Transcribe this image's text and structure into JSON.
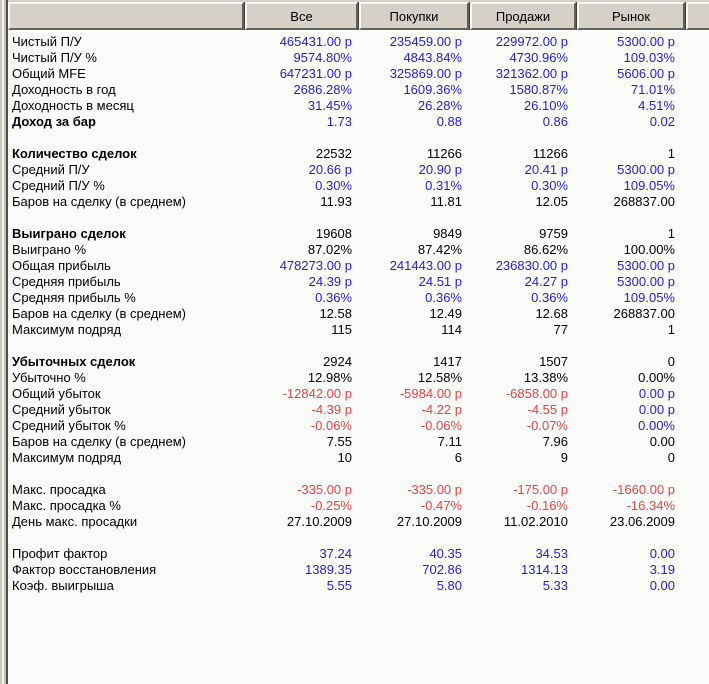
{
  "colors": {
    "blue": "#2222cc",
    "red": "#e24444",
    "black": "#000000",
    "header_bg": "#d5d1c9",
    "body_bg": "#fbfbf9"
  },
  "table": {
    "header": {
      "columns": [
        "Все",
        "Покупки",
        "Продажи",
        "Рынок"
      ]
    },
    "column_keys": [
      "all",
      "buys",
      "sells",
      "market"
    ],
    "rows": [
      {
        "label": "Чистый П/У",
        "values": [
          "465431.00 р",
          "235459.00 р",
          "229972.00 р",
          "5300.00 р"
        ],
        "colors": [
          "blue",
          "blue",
          "blue",
          "blue"
        ]
      },
      {
        "label": "Чистый П/У %",
        "values": [
          "9574.80%",
          "4843.84%",
          "4730.96%",
          "109.03%"
        ],
        "colors": [
          "blue",
          "blue",
          "blue",
          "blue"
        ]
      },
      {
        "label": "Общий MFE",
        "values": [
          "647231.00 р",
          "325869.00 р",
          "321362.00 р",
          "5606.00 р"
        ],
        "colors": [
          "blue",
          "blue",
          "blue",
          "blue"
        ]
      },
      {
        "label": "Доходность в год",
        "values": [
          "2686.28%",
          "1609.36%",
          "1580.87%",
          "71.01%"
        ],
        "colors": [
          "blue",
          "blue",
          "blue",
          "blue"
        ]
      },
      {
        "label": "Доходность в месяц",
        "values": [
          "31.45%",
          "26.28%",
          "26.10%",
          "4.51%"
        ],
        "colors": [
          "blue",
          "blue",
          "blue",
          "blue"
        ]
      },
      {
        "label": "Доход за бар",
        "bold": true,
        "values": [
          "1.73",
          "0.88",
          "0.86",
          "0.02"
        ],
        "colors": [
          "blue",
          "blue",
          "blue",
          "blue"
        ]
      },
      {
        "blank": true
      },
      {
        "label": "Количество сделок",
        "bold": true,
        "values": [
          "22532",
          "11266",
          "11266",
          "1"
        ],
        "colors": [
          "black",
          "black",
          "black",
          "black"
        ]
      },
      {
        "label": "Средний П/У",
        "values": [
          "20.66 р",
          "20.90 р",
          "20.41 р",
          "5300.00 р"
        ],
        "colors": [
          "blue",
          "blue",
          "blue",
          "blue"
        ]
      },
      {
        "label": "Средний П/У %",
        "values": [
          "0.30%",
          "0.31%",
          "0.30%",
          "109.05%"
        ],
        "colors": [
          "blue",
          "blue",
          "blue",
          "blue"
        ]
      },
      {
        "label": "Баров на сделку (в среднем)",
        "values": [
          "11.93",
          "11.81",
          "12.05",
          "268837.00"
        ],
        "colors": [
          "black",
          "black",
          "black",
          "black"
        ]
      },
      {
        "blank": true
      },
      {
        "label": "Выиграно сделок",
        "bold": true,
        "values": [
          "19608",
          "9849",
          "9759",
          "1"
        ],
        "colors": [
          "black",
          "black",
          "black",
          "black"
        ]
      },
      {
        "label": "Выиграно %",
        "values": [
          "87.02%",
          "87.42%",
          "86.62%",
          "100.00%"
        ],
        "colors": [
          "black",
          "black",
          "black",
          "black"
        ]
      },
      {
        "label": "Общая прибыль",
        "values": [
          "478273.00 р",
          "241443.00 р",
          "236830.00 р",
          "5300.00 р"
        ],
        "colors": [
          "blue",
          "blue",
          "blue",
          "blue"
        ]
      },
      {
        "label": "Средняя прибыль",
        "values": [
          "24.39 р",
          "24.51 р",
          "24.27 р",
          "5300.00 р"
        ],
        "colors": [
          "blue",
          "blue",
          "blue",
          "blue"
        ]
      },
      {
        "label": "Средняя прибыль %",
        "values": [
          "0.36%",
          "0.36%",
          "0.36%",
          "109.05%"
        ],
        "colors": [
          "blue",
          "blue",
          "blue",
          "blue"
        ]
      },
      {
        "label": "Баров на сделку (в среднем)",
        "values": [
          "12.58",
          "12.49",
          "12.68",
          "268837.00"
        ],
        "colors": [
          "black",
          "black",
          "black",
          "black"
        ]
      },
      {
        "label": "Максимум подряд",
        "values": [
          "115",
          "114",
          "77",
          "1"
        ],
        "colors": [
          "black",
          "black",
          "black",
          "black"
        ]
      },
      {
        "blank": true
      },
      {
        "label": "Убыточных сделок",
        "bold": true,
        "values": [
          "2924",
          "1417",
          "1507",
          "0"
        ],
        "colors": [
          "black",
          "black",
          "black",
          "black"
        ]
      },
      {
        "label": "Убыточно %",
        "values": [
          "12.98%",
          "12.58%",
          "13.38%",
          "0.00%"
        ],
        "colors": [
          "black",
          "black",
          "black",
          "black"
        ]
      },
      {
        "label": "Общий убыток",
        "values": [
          "-12842.00 р",
          "-5984.00 р",
          "-6858.00 р",
          "0.00 р"
        ],
        "colors": [
          "red",
          "red",
          "red",
          "blue"
        ]
      },
      {
        "label": "Средний убыток",
        "values": [
          "-4.39 р",
          "-4.22 р",
          "-4.55 р",
          "0.00 р"
        ],
        "colors": [
          "red",
          "red",
          "red",
          "blue"
        ]
      },
      {
        "label": "Средний убыток %",
        "values": [
          "-0.06%",
          "-0.06%",
          "-0.07%",
          "0.00%"
        ],
        "colors": [
          "red",
          "red",
          "red",
          "blue"
        ]
      },
      {
        "label": "Баров на сделку (в среднем)",
        "values": [
          "7.55",
          "7.11",
          "7.96",
          "0.00"
        ],
        "colors": [
          "black",
          "black",
          "black",
          "black"
        ]
      },
      {
        "label": "Максимум подряд",
        "values": [
          "10",
          "6",
          "9",
          "0"
        ],
        "colors": [
          "black",
          "black",
          "black",
          "black"
        ]
      },
      {
        "blank": true
      },
      {
        "label": "Макс. просадка",
        "values": [
          "-335.00 р",
          "-335.00 р",
          "-175.00 р",
          "-1660.00 р"
        ],
        "colors": [
          "red",
          "red",
          "red",
          "red"
        ]
      },
      {
        "label": "Макс. просадка %",
        "values": [
          "-0.25%",
          "-0.47%",
          "-0.16%",
          "-16.34%"
        ],
        "colors": [
          "red",
          "red",
          "red",
          "red"
        ]
      },
      {
        "label": "День макс. просадки",
        "values": [
          "27.10.2009",
          "27.10.2009",
          "11.02.2010",
          "23.06.2009"
        ],
        "colors": [
          "black",
          "black",
          "black",
          "black"
        ]
      },
      {
        "blank": true
      },
      {
        "label": "Профит фактор",
        "values": [
          "37.24",
          "40.35",
          "34.53",
          "0.00"
        ],
        "colors": [
          "blue",
          "blue",
          "blue",
          "blue"
        ]
      },
      {
        "label": "Фактор восстановления",
        "values": [
          "1389.35",
          "702.86",
          "1314.13",
          "3.19"
        ],
        "colors": [
          "blue",
          "blue",
          "blue",
          "blue"
        ]
      },
      {
        "label": "Коэф. выигрыша",
        "values": [
          "5.55",
          "5.80",
          "5.33",
          "0.00"
        ],
        "colors": [
          "blue",
          "blue",
          "blue",
          "blue"
        ]
      }
    ]
  }
}
